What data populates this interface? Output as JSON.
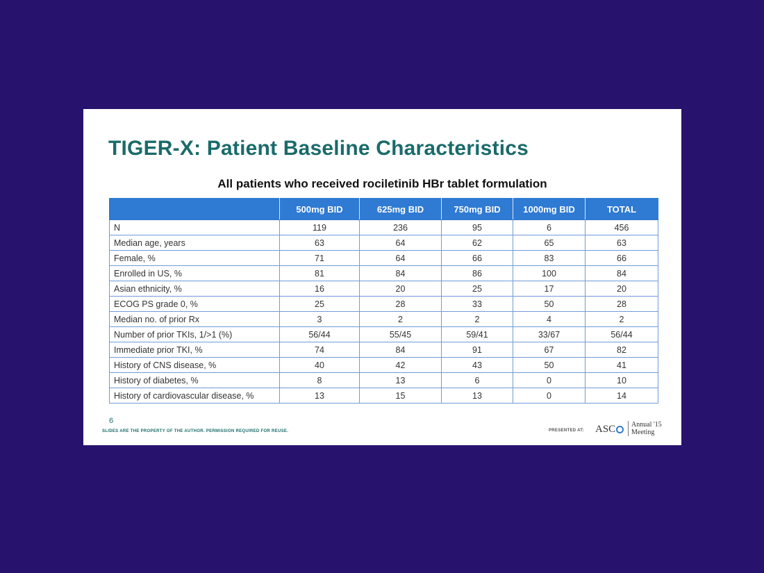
{
  "slide": {
    "title": "TIGER-X: Patient Baseline Characteristics",
    "subtitle": "All patients who received rociletinib HBr tablet formulation",
    "page_number": "6",
    "footer_note": "SLIDES ARE THE PROPERTY OF THE AUTHOR. PERMISSION REQUIRED FOR REUSE.",
    "presented_at": "PRESENTED AT:",
    "logo_text": "ASC",
    "meeting_line1": "Annual '15",
    "meeting_line2": "Meeting"
  },
  "table": {
    "headers": [
      "",
      "500mg BID",
      "625mg BID",
      "750mg BID",
      "1000mg BID",
      "TOTAL"
    ],
    "rows": [
      [
        "N",
        "119",
        "236",
        "95",
        "6",
        "456"
      ],
      [
        "Median age, years",
        "63",
        "64",
        "62",
        "65",
        "63"
      ],
      [
        "Female, %",
        "71",
        "64",
        "66",
        "83",
        "66"
      ],
      [
        "Enrolled in US, %",
        "81",
        "84",
        "86",
        "100",
        "84"
      ],
      [
        "Asian ethnicity, %",
        "16",
        "20",
        "25",
        "17",
        "20"
      ],
      [
        "ECOG PS grade 0, %",
        "25",
        "28",
        "33",
        "50",
        "28"
      ],
      [
        "Median no. of prior Rx",
        "3",
        "2",
        "2",
        "4",
        "2"
      ],
      [
        "Number of prior TKIs, 1/>1 (%)",
        "56/44",
        "55/45",
        "59/41",
        "33/67",
        "56/44"
      ],
      [
        "Immediate prior TKI, %",
        "74",
        "84",
        "91",
        "67",
        "82"
      ],
      [
        "History of CNS disease, %",
        "40",
        "42",
        "43",
        "50",
        "41"
      ],
      [
        "History of diabetes, %",
        "8",
        "13",
        "6",
        "0",
        "10"
      ],
      [
        "History of cardiovascular disease, %",
        "13",
        "15",
        "13",
        "0",
        "14"
      ]
    ]
  }
}
